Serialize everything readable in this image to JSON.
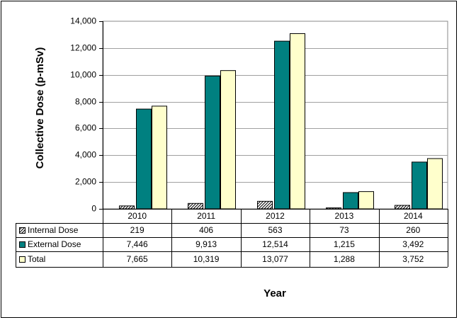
{
  "chart_data": {
    "type": "bar",
    "categories": [
      "2010",
      "2011",
      "2012",
      "2013",
      "2014"
    ],
    "series": [
      {
        "name": "Internal Dose",
        "values": [
          219,
          406,
          563,
          73,
          260
        ],
        "labels": [
          "219",
          "406",
          "563",
          "73",
          "260"
        ],
        "color": "#ffffff",
        "pattern": "diagonal-hatch"
      },
      {
        "name": "External Dose",
        "values": [
          7446,
          9913,
          12514,
          1215,
          3492
        ],
        "labels": [
          "7,446",
          "9,913",
          "12,514",
          "1,215",
          "3,492"
        ],
        "color": "#008080"
      },
      {
        "name": "Total",
        "values": [
          7665,
          10319,
          13077,
          1288,
          3752
        ],
        "labels": [
          "7,665",
          "10,319",
          "13,077",
          "1,288",
          "3,752"
        ],
        "color": "#ffffcc"
      }
    ],
    "ylabel": "Collective Dose (p-mSv)",
    "xlabel": "Year",
    "ylim": [
      0,
      14000
    ],
    "yticks": [
      "0",
      "2,000",
      "4,000",
      "6,000",
      "8,000",
      "10,000",
      "12,000",
      "14,000"
    ],
    "grid": true,
    "legend": "data-table"
  }
}
